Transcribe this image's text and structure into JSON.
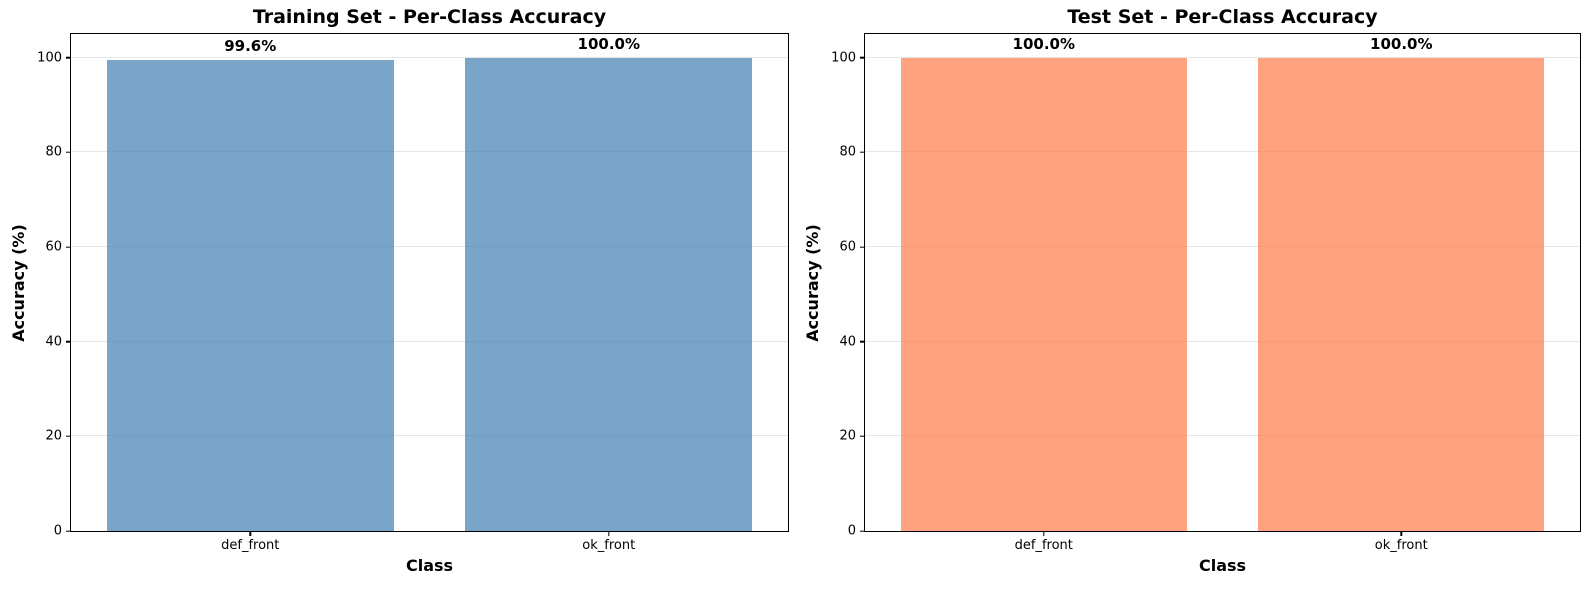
{
  "figure": {
    "background": "#ffffff"
  },
  "chart_data": [
    {
      "type": "bar",
      "title": "Training Set - Per-Class Accuracy",
      "xlabel": "Class",
      "ylabel": "Accuracy (%)",
      "categories": [
        "def_front",
        "ok_front"
      ],
      "values": [
        99.6,
        100.0
      ],
      "value_labels": [
        "99.6%",
        "100.0%"
      ],
      "yticks": [
        0,
        20,
        40,
        60,
        80,
        100
      ],
      "ylim": [
        0,
        105
      ],
      "bar_width": 0.8,
      "bar_color_hex": "#7aa6cb",
      "bar_color_rgba": "rgba(70,130,180,0.72)",
      "grid": true,
      "grid_color": "#e6e6e6",
      "legend_position": "none"
    },
    {
      "type": "bar",
      "title": "Test Set - Per-Class Accuracy",
      "xlabel": "Class",
      "ylabel": "Accuracy (%)",
      "categories": [
        "def_front",
        "ok_front"
      ],
      "values": [
        100.0,
        100.0
      ],
      "value_labels": [
        "100.0%",
        "100.0%"
      ],
      "yticks": [
        0,
        20,
        40,
        60,
        80,
        100
      ],
      "ylim": [
        0,
        105
      ],
      "bar_width": 0.8,
      "bar_color_hex": "#ffa183",
      "bar_color_rgba": "rgba(255,127,80,0.73)",
      "grid": true,
      "grid_color": "#e6e6e6",
      "legend_position": "none"
    }
  ]
}
